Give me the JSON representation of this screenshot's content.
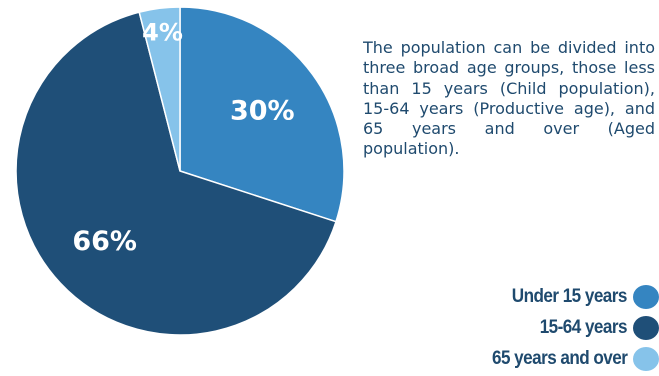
{
  "description": "The population can be divided into three broad age groups, those less than 15 years (Child population), 15-64 years (Productive age), and 65 years and over (Aged population).",
  "chart_data": {
    "type": "pie",
    "title": "",
    "start": "top, clockwise",
    "slices": [
      {
        "name": "Under 15 years",
        "value": 30,
        "label": "30%",
        "color": "#3585c1"
      },
      {
        "name": "15-64 years",
        "value": 66,
        "label": "66%",
        "color": "#1f4f78"
      },
      {
        "name": "65 years and over",
        "value": 4,
        "label": "4%",
        "color": "#86c3ea"
      }
    ],
    "legend": {
      "placement": "bottom-right",
      "items": [
        "Under 15 years",
        "15-64 years",
        "65 years and over"
      ]
    },
    "slice_border_color": "#ffffff"
  }
}
